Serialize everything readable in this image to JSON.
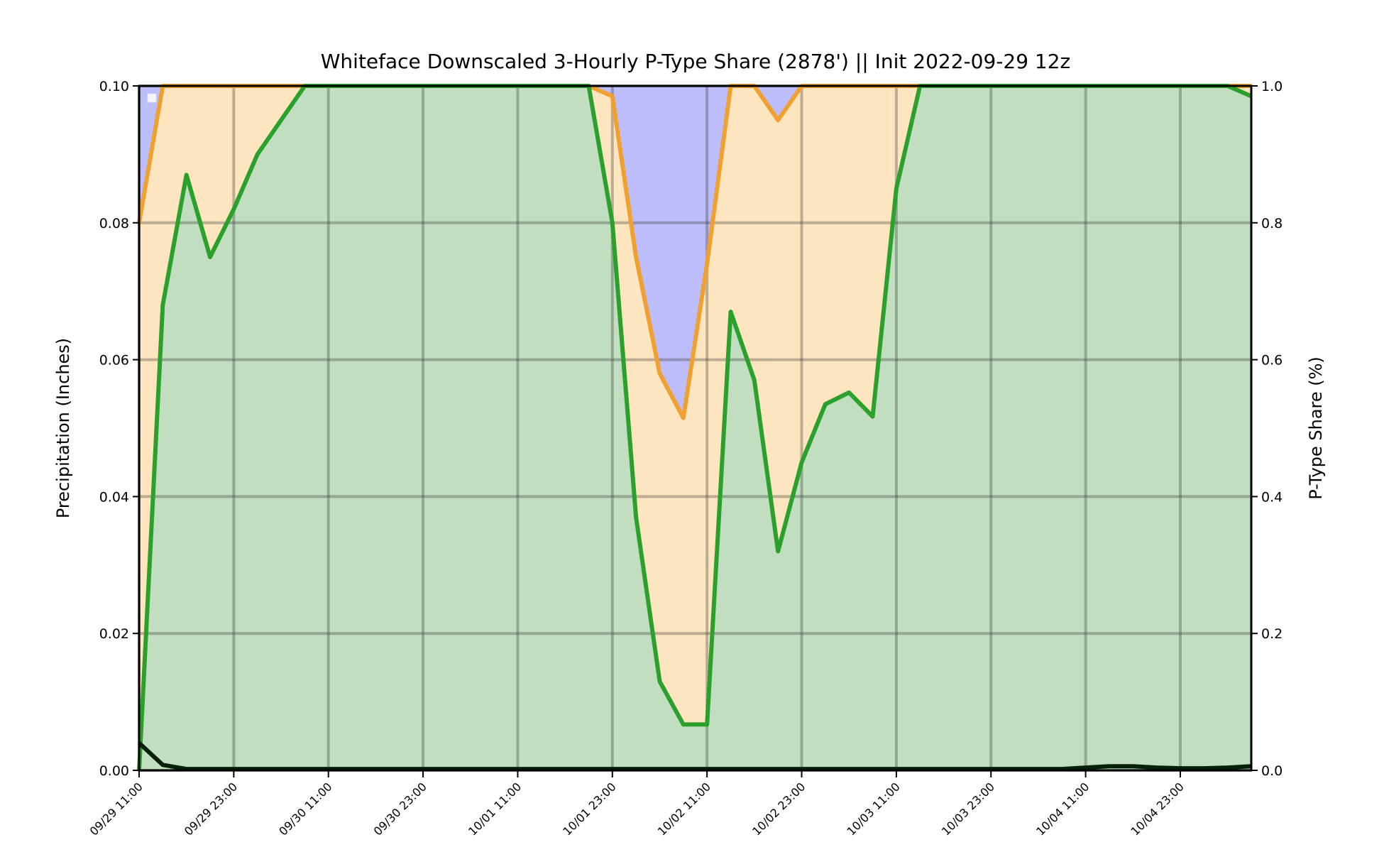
{
  "chart_data": {
    "type": "area",
    "title": "Whiteface Downscaled 3-Hourly P-Type Share (2878') || Init 2022-09-29 12z",
    "ylabel_left": "Precipitation (Inches)",
    "ylabel_right": "P-Type Share (%)",
    "xlabel": "",
    "ylim_left": [
      0,
      0.1
    ],
    "ylim_right": [
      0,
      1.0
    ],
    "yticks_left": [
      "0.00",
      "0.02",
      "0.04",
      "0.06",
      "0.08",
      "0.10"
    ],
    "yticks_right": [
      "0.0",
      "0.2",
      "0.4",
      "0.6",
      "0.8",
      "1.0"
    ],
    "xticks": [
      "09/29 11:00",
      "09/29 23:00",
      "09/30 11:00",
      "09/30 23:00",
      "10/01 11:00",
      "10/01 23:00",
      "10/02 11:00",
      "10/02 23:00",
      "10/03 11:00",
      "10/03 23:00",
      "10/04 11:00",
      "10/04 23:00"
    ],
    "grid": true,
    "legend": "empty, upper-left",
    "x_hours_from_start": [
      0,
      3,
      6,
      9,
      12,
      15,
      18,
      21,
      24,
      27,
      30,
      33,
      36,
      39,
      42,
      45,
      48,
      51,
      54,
      57,
      60,
      63,
      66,
      69,
      72,
      75,
      78,
      81,
      84,
      87,
      90,
      93,
      96,
      99,
      102,
      105,
      108,
      111,
      114,
      117,
      120,
      123,
      126,
      129,
      132,
      135,
      138,
      141
    ],
    "series": [
      {
        "role": "rain_share",
        "color": "#2ca02c",
        "fill": "#c1dfc0",
        "values": [
          0.0,
          0.68,
          0.87,
          0.75,
          0.82,
          0.9,
          0.95,
          1.0,
          1.0,
          1.0,
          1.0,
          1.0,
          1.0,
          1.0,
          1.0,
          1.0,
          1.0,
          1.0,
          1.0,
          1.0,
          0.8,
          0.37,
          0.13,
          0.067,
          0.067,
          0.67,
          0.57,
          0.32,
          0.45,
          0.535,
          0.552,
          0.517,
          0.85,
          1.0,
          1.0,
          1.0,
          1.0,
          1.0,
          1.0,
          1.0,
          1.0,
          1.0,
          1.0,
          1.0,
          1.0,
          1.0,
          1.0,
          0.985
        ]
      },
      {
        "role": "rain_plus_mix_share",
        "color": "#f0a030",
        "fill": "#fde6bf",
        "values": [
          0.8,
          1.0,
          1.0,
          1.0,
          1.0,
          1.0,
          1.0,
          1.0,
          1.0,
          1.0,
          1.0,
          1.0,
          1.0,
          1.0,
          1.0,
          1.0,
          1.0,
          1.0,
          1.0,
          1.0,
          0.985,
          0.75,
          0.58,
          0.515,
          0.74,
          1.0,
          1.0,
          0.95,
          1.0,
          1.0,
          1.0,
          1.0,
          1.0,
          1.0,
          1.0,
          1.0,
          1.0,
          1.0,
          1.0,
          1.0,
          1.0,
          1.0,
          1.0,
          1.0,
          1.0,
          1.0,
          1.0,
          1.0
        ]
      },
      {
        "role": "snow_top",
        "color": "#6060c0",
        "fill": "#bdbdfc",
        "values": [
          1.0,
          1.0,
          1.0,
          1.0,
          1.0,
          1.0,
          1.0,
          1.0,
          1.0,
          1.0,
          1.0,
          1.0,
          1.0,
          1.0,
          1.0,
          1.0,
          1.0,
          1.0,
          1.0,
          1.0,
          1.0,
          1.0,
          1.0,
          1.0,
          1.0,
          1.0,
          1.0,
          1.0,
          1.0,
          1.0,
          1.0,
          1.0,
          1.0,
          1.0,
          1.0,
          1.0,
          1.0,
          1.0,
          1.0,
          1.0,
          1.0,
          1.0,
          1.0,
          1.0,
          1.0,
          1.0,
          1.0,
          1.0
        ]
      },
      {
        "role": "precipitation_inches",
        "color": "#0a1f0a",
        "values": [
          0.004,
          0.0008,
          0.0002,
          0.0002,
          0.0002,
          0.0002,
          0.0002,
          0.0002,
          0.0002,
          0.0002,
          0.0002,
          0.0002,
          0.0002,
          0.0002,
          0.0002,
          0.0002,
          0.0002,
          0.0002,
          0.0002,
          0.0002,
          0.0002,
          0.0002,
          0.0002,
          0.0002,
          0.0002,
          0.0002,
          0.0002,
          0.0002,
          0.0002,
          0.0002,
          0.0002,
          0.0002,
          0.0002,
          0.0002,
          0.0002,
          0.0002,
          0.0002,
          0.0002,
          0.0002,
          0.0002,
          0.0004,
          0.0006,
          0.0006,
          0.0004,
          0.0003,
          0.0003,
          0.0004,
          0.0006
        ]
      }
    ]
  }
}
